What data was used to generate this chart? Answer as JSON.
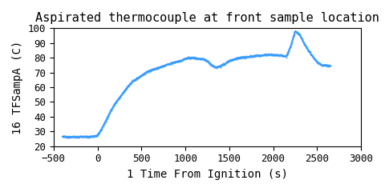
{
  "title": "Aspirated thermocouple at front sample location",
  "xlabel": "1 Time From Ignition (s)",
  "ylabel": "16 TFSampA (C)",
  "xlim": [
    -500,
    3000
  ],
  "ylim": [
    20,
    100
  ],
  "xticks": [
    -500,
    0,
    500,
    1000,
    1500,
    2000,
    2500,
    3000
  ],
  "yticks": [
    20,
    30,
    40,
    50,
    60,
    70,
    80,
    90,
    100
  ],
  "line_color": "#3399ff",
  "bg_color": "#ffffff",
  "font_family": "monospace",
  "title_fontsize": 11,
  "label_fontsize": 10,
  "tick_fontsize": 9,
  "curve": {
    "x": [
      -400,
      -350,
      -300,
      -250,
      -200,
      -150,
      -100,
      -50,
      0,
      50,
      100,
      150,
      200,
      250,
      300,
      350,
      400,
      450,
      500,
      550,
      600,
      650,
      700,
      750,
      800,
      850,
      900,
      950,
      1000,
      1050,
      1100,
      1150,
      1200,
      1250,
      1300,
      1350,
      1400,
      1450,
      1500,
      1550,
      1600,
      1650,
      1700,
      1750,
      1800,
      1850,
      1900,
      1950,
      2000,
      2050,
      2100,
      2150,
      2200,
      2250,
      2300,
      2350,
      2400,
      2450,
      2500,
      2550,
      2600,
      2650
    ],
    "y": [
      26.5,
      26.5,
      26.5,
      26.5,
      26.5,
      26.5,
      26.5,
      26.8,
      27.5,
      32,
      38,
      44,
      49,
      53,
      57,
      61,
      64,
      66,
      68,
      70,
      71.5,
      72.5,
      73.5,
      74.5,
      75.5,
      76.5,
      77.5,
      78,
      79.5,
      80,
      80,
      79.5,
      79,
      78,
      75,
      73.5,
      74.5,
      76,
      78,
      79,
      80,
      80.5,
      80.5,
      81,
      81.5,
      81.5,
      82,
      82,
      82,
      82,
      81.5,
      81,
      88,
      98,
      96,
      90,
      85,
      81,
      77,
      75,
      75,
      74.5
    ]
  }
}
